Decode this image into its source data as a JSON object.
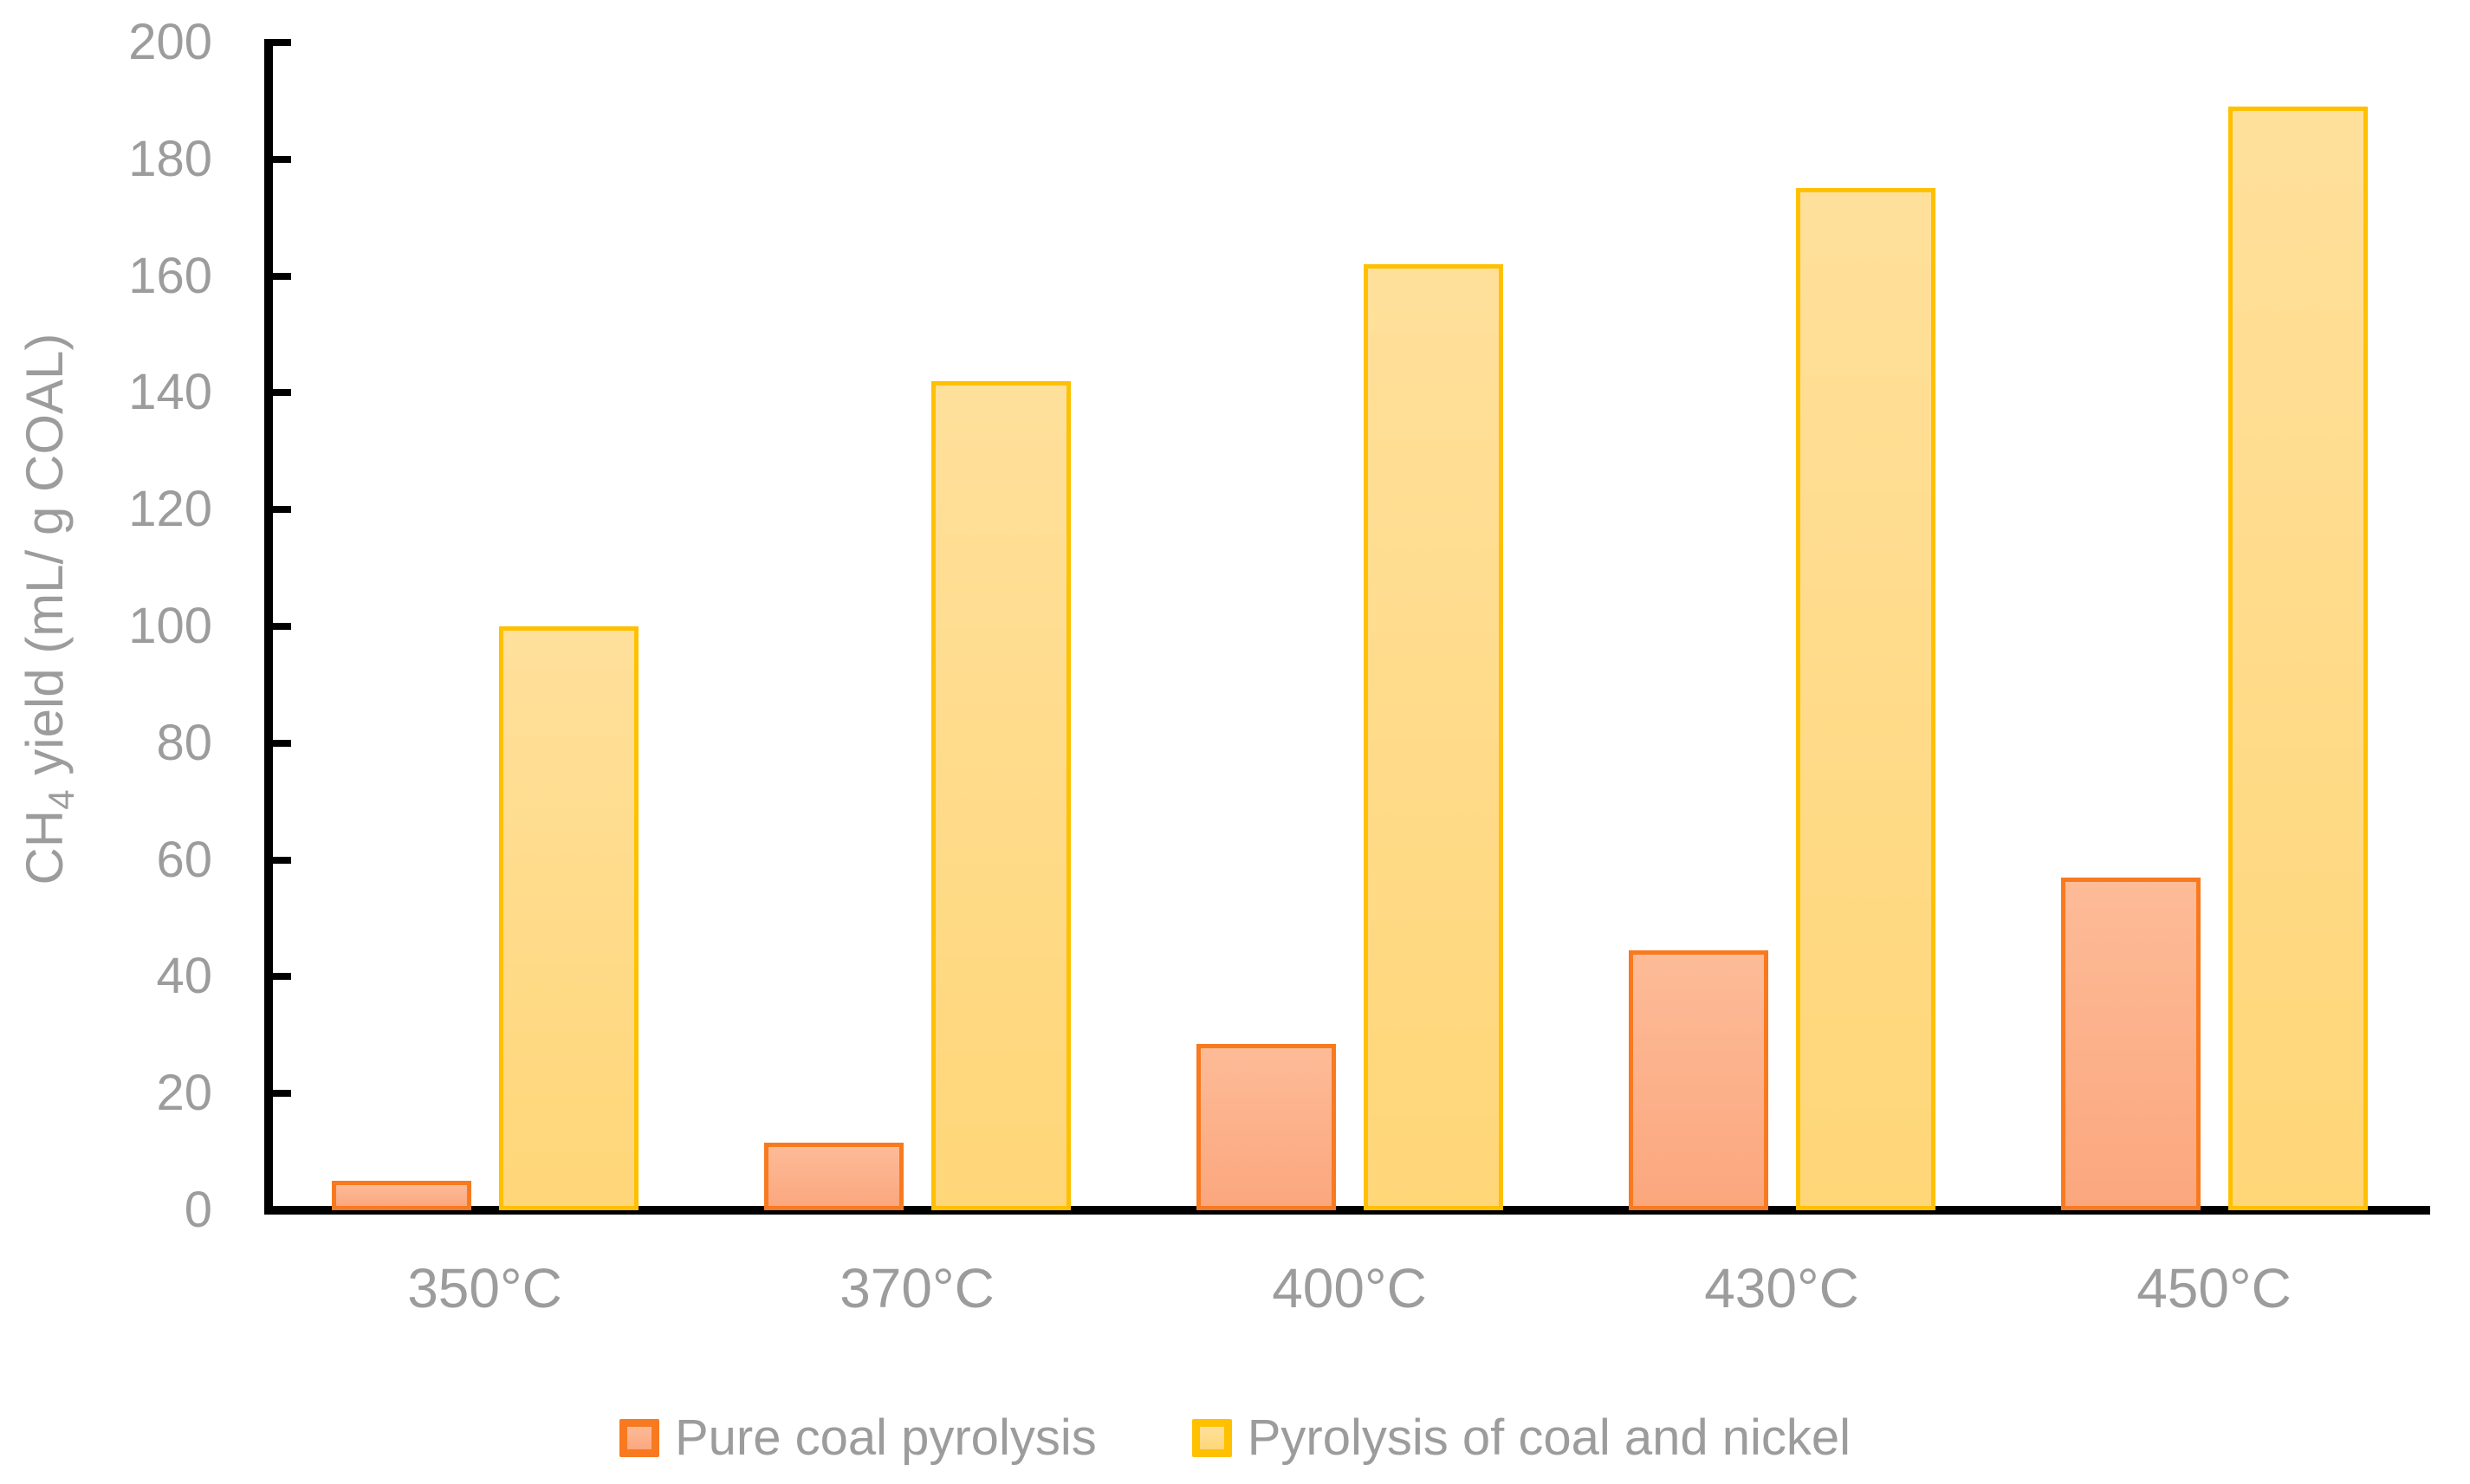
{
  "chart_data": {
    "type": "bar",
    "title": "",
    "categories": [
      "350°C",
      "370°C",
      "400°C",
      "430°C",
      "450°C"
    ],
    "series": [
      {
        "name": "Pure coal pyrolysis",
        "values": [
          5,
          11.5,
          28.5,
          44.5,
          57
        ],
        "border_color": "#F87A20",
        "fill_top": "#FDBB97",
        "fill_bottom": "#FBA77E"
      },
      {
        "name": "Pyrolysis of coal and nickel",
        "values": [
          100,
          142,
          162,
          175,
          189
        ],
        "border_color": "#FFC000",
        "fill_top": "#FFE09B",
        "fill_bottom": "#FFD678"
      }
    ],
    "xlabel": "",
    "ylabel": "CH4 yield (mL/ g COAL)",
    "ylabel_parts": {
      "prefix": "CH",
      "sub": "4",
      "suffix": " yield (mL/ g COAL)"
    },
    "ylim": [
      0,
      200
    ],
    "ytick_step": 20,
    "yticks": [
      0,
      20,
      40,
      60,
      80,
      100,
      120,
      140,
      160,
      180,
      200
    ],
    "grid": false,
    "legend_position": "bottom",
    "colors": {
      "axis": "#000000",
      "tick_label_text": "#9C9C9C",
      "axis_title_text": "#9C9C9C",
      "legend_text": "#9C9C9C",
      "background": "#FFFFFF"
    }
  }
}
